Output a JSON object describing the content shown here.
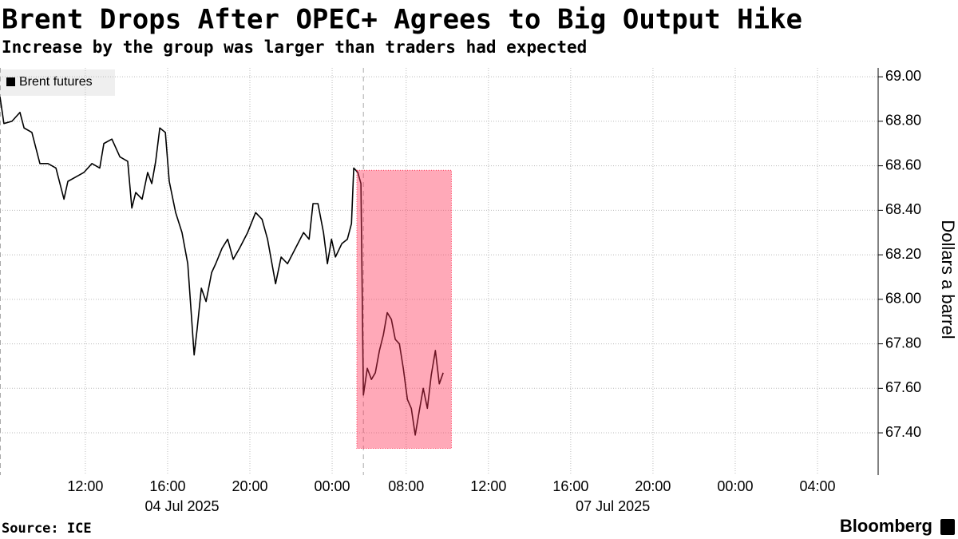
{
  "chart_data": {
    "type": "line",
    "title": "Brent Drops After OPEC+ Agrees to Big Output Hike",
    "subtitle": "Increase by the group was larger than traders had expected",
    "y_label": "Dollars a barrel",
    "source": "Source: ICE",
    "brand": "Bloomberg",
    "x": [
      7.85,
      8.04,
      8.43,
      8.82,
      9.02,
      9.4,
      9.79,
      10.18,
      10.57,
      10.96,
      11.15,
      11.54,
      11.93,
      12.32,
      12.7,
      12.9,
      13.29,
      13.68,
      14.06,
      14.26,
      14.45,
      14.76,
      15.03,
      15.23,
      15.42,
      15.62,
      15.89,
      16.08,
      16.39,
      16.7,
      16.98,
      17.17,
      17.29,
      17.44,
      17.64,
      17.87,
      18.14,
      18.34,
      18.65,
      18.92,
      19.19,
      19.5,
      19.89,
      20.28,
      20.59,
      20.86,
      21.25,
      21.52,
      21.83,
      22.22,
      22.61,
      22.88,
      23.07,
      23.31,
      23.58,
      23.77,
      23.97,
      24.16,
      24.47,
      24.74,
      24.94,
      25.05,
      25.25,
      25.4,
      25.52,
      25.71,
      25.91,
      26.1,
      26.3,
      26.49,
      26.68,
      26.88,
      27.07,
      27.27,
      27.46,
      27.66,
      27.85,
      28.04,
      28.24,
      28.43,
      28.63,
      28.82,
      29.02,
      29.21,
      29.4
    ],
    "series": [
      {
        "name": "Brent futures",
        "color": "#000000",
        "values": [
          68.91,
          68.79,
          68.8,
          68.84,
          68.77,
          68.75,
          68.61,
          68.61,
          68.59,
          68.45,
          68.53,
          68.55,
          68.57,
          68.61,
          68.59,
          68.7,
          68.72,
          68.64,
          68.62,
          68.41,
          68.48,
          68.45,
          68.57,
          68.52,
          68.62,
          68.77,
          68.75,
          68.53,
          68.39,
          68.3,
          68.16,
          67.91,
          67.75,
          67.87,
          68.05,
          67.99,
          68.12,
          68.16,
          68.23,
          68.27,
          68.18,
          68.23,
          68.3,
          68.39,
          68.36,
          68.27,
          68.07,
          68.19,
          68.16,
          68.23,
          68.3,
          68.27,
          68.43,
          68.43,
          68.3,
          68.16,
          68.27,
          68.19,
          68.25,
          68.27,
          68.34,
          68.59,
          68.57,
          68.52,
          67.57,
          67.69,
          67.64,
          67.67,
          67.77,
          67.84,
          67.94,
          67.91,
          67.82,
          67.8,
          67.69,
          67.55,
          67.51,
          67.39,
          67.5,
          67.6,
          67.51,
          67.66,
          67.77,
          67.62,
          67.67
        ]
      }
    ],
    "xlim": [
      7.85,
      50.55
    ],
    "ylim": [
      67.21,
      69.04
    ],
    "xticks": [
      {
        "value": 12,
        "label": "12:00"
      },
      {
        "value": 16,
        "label": "16:00"
      },
      {
        "value": 20,
        "label": "20:00"
      },
      {
        "value": 24,
        "label": "00:00"
      },
      {
        "value": 27.6,
        "label": "08:00"
      },
      {
        "value": 31.6,
        "label": "12:00"
      },
      {
        "value": 35.6,
        "label": "16:00"
      },
      {
        "value": 39.6,
        "label": "20:00"
      },
      {
        "value": 43.6,
        "label": "00:00"
      },
      {
        "value": 47.6,
        "label": "04:00"
      }
    ],
    "date_labels": [
      {
        "value": 16.7,
        "label": "04 Jul 2025"
      },
      {
        "value": 37.65,
        "label": "07 Jul 2025"
      }
    ],
    "yticks": [
      {
        "value": 67.4,
        "label": "67.40"
      },
      {
        "value": 67.6,
        "label": "67.60"
      },
      {
        "value": 67.8,
        "label": "67.80"
      },
      {
        "value": 68,
        "label": "68.00"
      },
      {
        "value": 68.2,
        "label": "68.20"
      },
      {
        "value": 68.4,
        "label": "68.40"
      },
      {
        "value": 68.6,
        "label": "68.60"
      },
      {
        "value": 68.8,
        "label": "68.80"
      },
      {
        "value": 69,
        "label": "69.00"
      }
    ],
    "break_x": 25.52,
    "highlight": {
      "color": "#ff3355",
      "x": [
        25.2,
        29.8
      ],
      "y": [
        67.33,
        68.58
      ]
    },
    "grid": true
  }
}
